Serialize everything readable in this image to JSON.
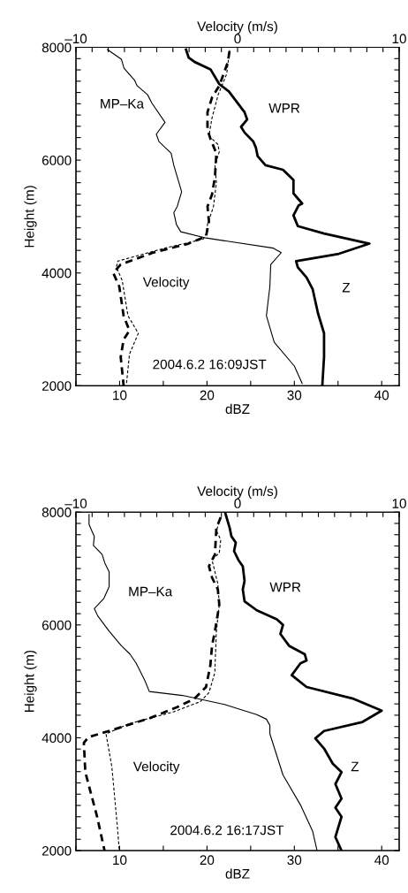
{
  "chart_data": [
    {
      "type": "line",
      "xlabel": "dBZ",
      "x2label": "Velocity (m/s)",
      "ylabel": "Height (m)",
      "xlim": [
        5,
        42
      ],
      "x2lim": [
        -10,
        10
      ],
      "ylim": [
        2000,
        8000
      ],
      "xticks": [
        {
          "value": 5,
          "label": null
        },
        10,
        {
          "value": 15,
          "label": null
        },
        20,
        {
          "value": 25,
          "label": null
        },
        30,
        {
          "value": 35,
          "label": null
        },
        40
      ],
      "x2ticks": [
        {
          "value": -10,
          "label": "–10"
        },
        {
          "value": -9,
          "label": null
        },
        {
          "value": -8,
          "label": null
        },
        {
          "value": -7,
          "label": null
        },
        {
          "value": -6,
          "label": null
        },
        {
          "value": -5,
          "label": null
        },
        {
          "value": -4,
          "label": null
        },
        {
          "value": -3,
          "label": null
        },
        {
          "value": -2,
          "label": null
        },
        {
          "value": -1,
          "label": null
        },
        0,
        {
          "value": 1,
          "label": null
        },
        {
          "value": 2,
          "label": null
        },
        {
          "value": 3,
          "label": null
        },
        {
          "value": 4,
          "label": null
        },
        {
          "value": 5,
          "label": null
        },
        {
          "value": 6,
          "label": null
        },
        {
          "value": 7,
          "label": null
        },
        {
          "value": 8,
          "label": null
        },
        {
          "value": 9,
          "label": null
        },
        10
      ],
      "yticks": [
        2000,
        {
          "value": 2200,
          "label": null
        },
        {
          "value": 2400,
          "label": null
        },
        {
          "value": 2600,
          "label": null
        },
        {
          "value": 2800,
          "label": null
        },
        {
          "value": 3000,
          "label": null
        },
        {
          "value": 3200,
          "label": null
        },
        {
          "value": 3400,
          "label": null
        },
        {
          "value": 3600,
          "label": null
        },
        {
          "value": 3800,
          "label": null
        },
        4000,
        {
          "value": 4200,
          "label": null
        },
        {
          "value": 4400,
          "label": null
        },
        {
          "value": 4600,
          "label": null
        },
        {
          "value": 4800,
          "label": null
        },
        {
          "value": 5000,
          "label": null
        },
        {
          "value": 5200,
          "label": null
        },
        {
          "value": 5400,
          "label": null
        },
        {
          "value": 5600,
          "label": null
        },
        {
          "value": 5800,
          "label": null
        },
        6000,
        {
          "value": 6200,
          "label": null
        },
        {
          "value": 6400,
          "label": null
        },
        {
          "value": 6600,
          "label": null
        },
        {
          "value": 6800,
          "label": null
        },
        {
          "value": 7000,
          "label": null
        },
        {
          "value": 7200,
          "label": null
        },
        {
          "value": 7400,
          "label": null
        },
        {
          "value": 7600,
          "label": null
        },
        {
          "value": 7800,
          "label": null
        },
        8000
      ],
      "grid": false,
      "legend": false,
      "series": [
        {
          "color": "#000000",
          "line_style": "solid",
          "x": [
            17.6,
            17.9,
            18.6,
            20.4,
            21.4,
            22.5,
            24.3,
            24.6,
            23.9,
            24.3,
            25.3,
            25.6,
            25.8,
            26.7,
            28.7,
            29.9,
            29.9,
            30.9,
            30.5,
            29.9,
            30.4,
            33.4,
            38.6,
            35.1,
            30.2,
            30.4,
            31.4,
            32.1,
            32.7,
            33.4,
            33.4,
            33.2
          ],
          "values": [
            7960,
            7820,
            7740,
            7610,
            7350,
            7220,
            6850,
            6720,
            6590,
            6490,
            6330,
            6220,
            6070,
            5910,
            5830,
            5650,
            5410,
            5230,
            5200,
            5020,
            4830,
            4700,
            4520,
            4340,
            4210,
            4100,
            3920,
            3710,
            3290,
            2930,
            2510,
            2000
          ]
        },
        {
          "color": "#000000",
          "line_style": "solid",
          "x": [
            8.6,
            10.2,
            10.5,
            11.7,
            12.0,
            13.2,
            13.7,
            15.2,
            14.2,
            14.5,
            15.9,
            16.2,
            17.1,
            16.6,
            16.2,
            16.5,
            17.0,
            19.9,
            27.6,
            28.5,
            27.3,
            27.2,
            26.8,
            27.7,
            30.0,
            30.9
          ],
          "values": [
            7960,
            7790,
            7630,
            7420,
            7320,
            7160,
            7010,
            6670,
            6460,
            6330,
            6120,
            5910,
            5440,
            5180,
            5070,
            4860,
            4730,
            4620,
            4440,
            4360,
            4150,
            3760,
            3240,
            2770,
            2350,
            2040
          ]
        },
        {
          "color": "#000000",
          "line_style": "dashed",
          "axis": "x2",
          "x": [
            -0.5,
            -0.6,
            -0.86,
            -1.13,
            -1.58,
            -1.86,
            -1.86,
            -1.68,
            -1.31,
            -1.4,
            -1.58,
            -1.86,
            -1.77,
            -1.95,
            -3.04,
            -5.23,
            -7.23,
            -7.69,
            -7.32,
            -7.05,
            -6.69,
            -7.05,
            -7.23,
            -7.05
          ],
          "values": [
            7930,
            7740,
            7530,
            7320,
            7110,
            6850,
            6540,
            6380,
            6120,
            5700,
            5390,
            5180,
            4910,
            4650,
            4520,
            4360,
            4150,
            4000,
            3760,
            3240,
            2980,
            2820,
            2510,
            2000
          ]
        },
        {
          "color": "#000000",
          "line_style": "dashed",
          "axis": "x2",
          "x": [
            -0.49,
            -0.67,
            -1.2,
            -1.58,
            -1.77,
            -1.22,
            -1.13,
            -1.4,
            -1.31,
            -1.49,
            -1.58,
            -1.86,
            -1.95,
            -2.13,
            -4.5,
            -7.41,
            -7.5,
            -7.14,
            -6.78,
            -6.14,
            -6.69,
            -6.87
          ],
          "values": [
            7950,
            7530,
            7160,
            6750,
            6430,
            6280,
            6150,
            5910,
            5600,
            5180,
            5100,
            4860,
            4680,
            4600,
            4440,
            4210,
            4100,
            3870,
            3240,
            2930,
            2560,
            2040
          ]
        }
      ],
      "annotations": [
        "MP–Ka",
        "WPR",
        "Velocity",
        "Z",
        "2004.6.2 16:09JST"
      ]
    },
    {
      "type": "line",
      "xlabel": "dBZ",
      "x2label": "Velocity (m/s)",
      "ylabel": "Height (m)",
      "xlim": [
        5,
        42
      ],
      "x2lim": [
        -10,
        10
      ],
      "ylim": [
        2000,
        8000
      ],
      "xticks": [
        {
          "value": 5,
          "label": null
        },
        10,
        {
          "value": 15,
          "label": null
        },
        20,
        {
          "value": 25,
          "label": null
        },
        30,
        {
          "value": 35,
          "label": null
        },
        40
      ],
      "x2ticks": [
        {
          "value": -10,
          "label": "–10"
        },
        {
          "value": -9,
          "label": null
        },
        {
          "value": -8,
          "label": null
        },
        {
          "value": -7,
          "label": null
        },
        {
          "value": -6,
          "label": null
        },
        {
          "value": -5,
          "label": null
        },
        {
          "value": -4,
          "label": null
        },
        {
          "value": -3,
          "label": null
        },
        {
          "value": -2,
          "label": null
        },
        {
          "value": -1,
          "label": null
        },
        0,
        {
          "value": 1,
          "label": null
        },
        {
          "value": 2,
          "label": null
        },
        {
          "value": 3,
          "label": null
        },
        {
          "value": 4,
          "label": null
        },
        {
          "value": 5,
          "label": null
        },
        {
          "value": 6,
          "label": null
        },
        {
          "value": 7,
          "label": null
        },
        {
          "value": 8,
          "label": null
        },
        {
          "value": 9,
          "label": null
        },
        10
      ],
      "yticks": [
        2000,
        {
          "value": 2200,
          "label": null
        },
        {
          "value": 2400,
          "label": null
        },
        {
          "value": 2600,
          "label": null
        },
        {
          "value": 2800,
          "label": null
        },
        {
          "value": 3000,
          "label": null
        },
        {
          "value": 3200,
          "label": null
        },
        {
          "value": 3400,
          "label": null
        },
        {
          "value": 3600,
          "label": null
        },
        {
          "value": 3800,
          "label": null
        },
        4000,
        {
          "value": 4200,
          "label": null
        },
        {
          "value": 4400,
          "label": null
        },
        {
          "value": 4600,
          "label": null
        },
        {
          "value": 4800,
          "label": null
        },
        {
          "value": 5000,
          "label": null
        },
        {
          "value": 5200,
          "label": null
        },
        {
          "value": 5400,
          "label": null
        },
        {
          "value": 5600,
          "label": null
        },
        {
          "value": 5800,
          "label": null
        },
        6000,
        {
          "value": 6200,
          "label": null
        },
        {
          "value": 6400,
          "label": null
        },
        {
          "value": 6600,
          "label": null
        },
        {
          "value": 6800,
          "label": null
        },
        {
          "value": 7000,
          "label": null
        },
        {
          "value": 7200,
          "label": null
        },
        {
          "value": 7400,
          "label": null
        },
        {
          "value": 7600,
          "label": null
        },
        {
          "value": 7800,
          "label": null
        },
        8000
      ],
      "grid": false,
      "legend": false,
      "series": [
        {
          "color": "#000000",
          "line_style": "solid",
          "x": [
            22.1,
            22.6,
            22.8,
            23.3,
            23.1,
            23.6,
            24.1,
            24.3,
            24.1,
            24.3,
            25.7,
            28.0,
            28.7,
            28.4,
            29.4,
            31.2,
            31.4,
            30.7,
            29.7,
            31.4,
            36.8,
            40.0,
            37.8,
            33.4,
            32.4,
            33.4,
            34.4,
            35.4,
            34.7,
            35.4,
            34.7,
            35.4,
            34.7,
            35.4
          ],
          "values": [
            7980,
            7720,
            7570,
            7460,
            7310,
            7150,
            7040,
            6780,
            6630,
            6420,
            6260,
            6100,
            6000,
            5840,
            5630,
            5480,
            5370,
            5320,
            5110,
            4900,
            4690,
            4480,
            4280,
            4120,
            3990,
            3810,
            3540,
            3390,
            3180,
            2920,
            2760,
            2600,
            2240,
            2000
          ]
        },
        {
          "color": "#000000",
          "line_style": "solid",
          "x": [
            6.5,
            6.5,
            7.1,
            7.0,
            8.0,
            8.3,
            8.8,
            8.8,
            8.2,
            7.1,
            7.5,
            8.8,
            10.2,
            11.2,
            11.9,
            12.9,
            13.4,
            17.2,
            22.0,
            25.7,
            26.8,
            27.2,
            27.2,
            28.7,
            30.7,
            32.1,
            32.6
          ],
          "values": [
            7960,
            7780,
            7570,
            7410,
            7250,
            7100,
            6940,
            6680,
            6470,
            6290,
            6160,
            5890,
            5630,
            5480,
            5320,
            5010,
            4820,
            4750,
            4590,
            4410,
            4330,
            4220,
            4070,
            3340,
            2810,
            2340,
            2000
          ]
        },
        {
          "color": "#000000",
          "line_style": "dashed",
          "axis": "x2",
          "x": [
            -1.04,
            -1.31,
            -1.4,
            -1.77,
            -1.58,
            -1.22,
            -1.13,
            -1.4,
            -1.58,
            -1.68,
            -1.95,
            -2.68,
            -3.77,
            -5.41,
            -7.96,
            -9.23,
            -9.51,
            -9.42,
            -8.69,
            -8.23
          ],
          "values": [
            7910,
            7720,
            7250,
            7040,
            6840,
            6630,
            6360,
            5890,
            5630,
            5290,
            4900,
            4690,
            4540,
            4350,
            4120,
            4010,
            3910,
            3390,
            2600,
            2000
          ]
        },
        {
          "color": "#000000",
          "line_style": "dashed",
          "axis": "x2",
          "x": [
            -1.04,
            -1.31,
            -1.04,
            -1.13,
            -1.58,
            -1.22,
            -1.13,
            -1.31,
            -1.4,
            -1.4,
            -1.77,
            -2.31,
            -3.95,
            -6.69,
            -8.14,
            -7.78,
            -7.41,
            -7.32
          ],
          "values": [
            7910,
            7670,
            7510,
            7280,
            7150,
            6730,
            6360,
            5890,
            5220,
            5160,
            4800,
            4640,
            4460,
            4250,
            4070,
            3490,
            2340,
            2000
          ]
        }
      ],
      "annotations": [
        "MP–Ka",
        "WPR",
        "Velocity",
        "Z",
        "2004.6.2 16:17JST"
      ]
    }
  ]
}
